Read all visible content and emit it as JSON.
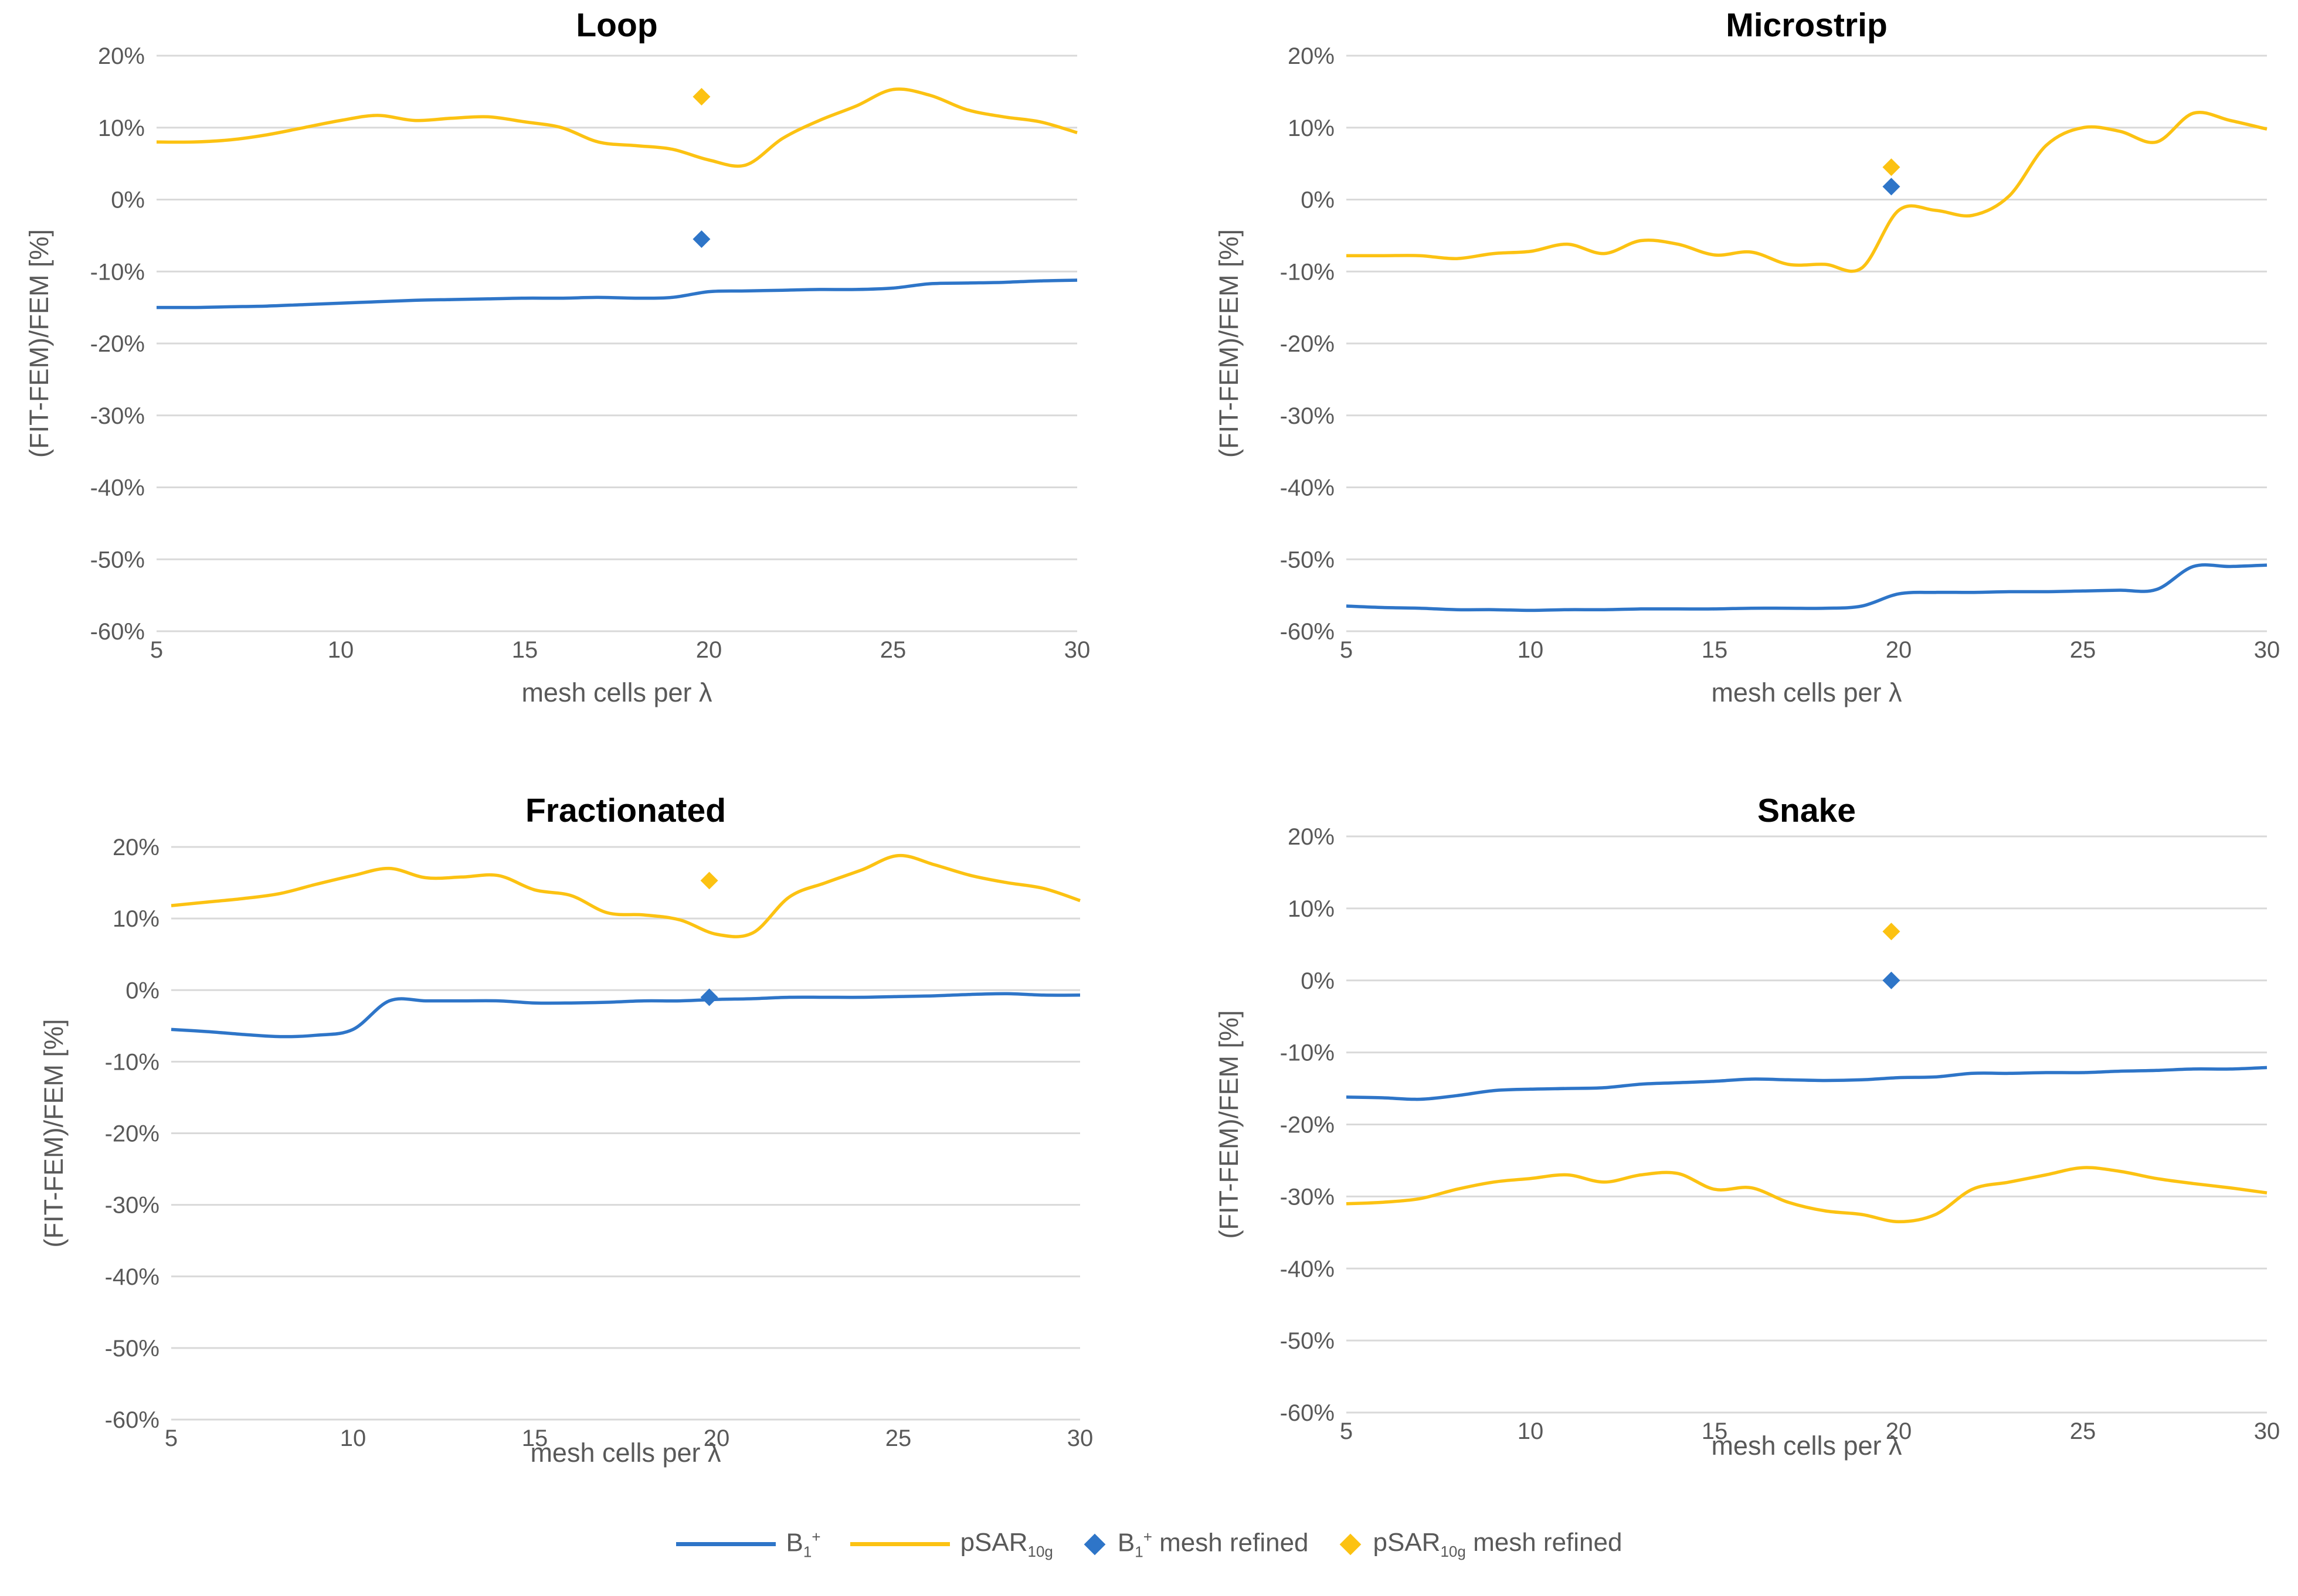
{
  "colors": {
    "b1": "#2e75c8",
    "psar": "#fcc212",
    "grid": "#d9d9d9",
    "text": "#595959"
  },
  "legend": {
    "b1_base": "B",
    "b1_sub": "1",
    "b1_sup": "+",
    "psar_base": "pSAR",
    "psar_sub": "10g",
    "refined_suffix": "mesh refined"
  },
  "chart_data": [
    {
      "type": "line",
      "title": "Loop",
      "xlabel": "mesh cells per λ",
      "ylabel": "(FIT-FEM)/FEM [%]",
      "xlim": [
        5,
        30
      ],
      "ylim": [
        -60,
        20
      ],
      "x_ticks": [
        5,
        10,
        15,
        20,
        25,
        30
      ],
      "y_ticks": [
        20,
        10,
        0,
        -10,
        -20,
        -30,
        -40,
        -50,
        -60
      ],
      "grid": true,
      "x": [
        5,
        6,
        7,
        8,
        9,
        10,
        11,
        12,
        13,
        14,
        15,
        16,
        17,
        18,
        19,
        20,
        21,
        22,
        23,
        24,
        25,
        26,
        27,
        28,
        29,
        30
      ],
      "series": [
        {
          "name": "B1+",
          "color": "#2e75c8",
          "values": [
            -15,
            -15,
            -14.9,
            -14.8,
            -14.6,
            -14.4,
            -14.2,
            -14.0,
            -13.9,
            -13.8,
            -13.7,
            -13.7,
            -13.6,
            -13.7,
            -13.6,
            -12.8,
            -12.7,
            -12.6,
            -12.5,
            -12.5,
            -12.3,
            -11.7,
            -11.6,
            -11.5,
            -11.3,
            -11.2
          ]
        },
        {
          "name": "pSAR10g",
          "color": "#fcc212",
          "values": [
            8,
            8,
            8.3,
            9,
            10,
            11,
            11.7,
            11,
            11.3,
            11.5,
            10.8,
            10,
            8,
            7.5,
            7,
            5.5,
            4.8,
            8.5,
            11,
            13,
            15.3,
            14.5,
            12.5,
            11.5,
            10.8,
            9.3
          ]
        }
      ],
      "markers": [
        {
          "name": "B1+ mesh refined",
          "color": "#2e75c8",
          "x": 19.8,
          "y": -5.5
        },
        {
          "name": "pSAR10g mesh refined",
          "color": "#fcc212",
          "x": 19.8,
          "y": 14.3
        }
      ]
    },
    {
      "type": "line",
      "title": "Microstrip",
      "xlabel": "mesh cells per λ",
      "ylabel": "(FIT-FEM)/FEM [%]",
      "xlim": [
        5,
        30
      ],
      "ylim": [
        -60,
        20
      ],
      "x_ticks": [
        5,
        10,
        15,
        20,
        25,
        30
      ],
      "y_ticks": [
        20,
        10,
        0,
        -10,
        -20,
        -30,
        -40,
        -50,
        -60
      ],
      "grid": true,
      "x": [
        5,
        6,
        7,
        8,
        9,
        10,
        11,
        12,
        13,
        14,
        15,
        16,
        17,
        18,
        19,
        20,
        21,
        22,
        23,
        24,
        25,
        26,
        27,
        28,
        29,
        30
      ],
      "series": [
        {
          "name": "B1+",
          "color": "#2e75c8",
          "values": [
            -56.5,
            -56.7,
            -56.8,
            -57,
            -57,
            -57.1,
            -57,
            -57,
            -56.9,
            -56.9,
            -56.9,
            -56.8,
            -56.8,
            -56.8,
            -56.5,
            -54.8,
            -54.6,
            -54.6,
            -54.5,
            -54.5,
            -54.4,
            -54.3,
            -54.2,
            -51,
            -51,
            -50.8
          ]
        },
        {
          "name": "pSAR10g",
          "color": "#fcc212",
          "values": [
            -7.8,
            -7.8,
            -7.8,
            -8.2,
            -7.5,
            -7.2,
            -6.2,
            -7.5,
            -5.7,
            -6.2,
            -7.7,
            -7.3,
            -9,
            -9,
            -9.5,
            -1.5,
            -1.5,
            -2.2,
            0.5,
            7.5,
            10,
            9.5,
            8,
            12,
            11,
            9.8
          ]
        }
      ],
      "markers": [
        {
          "name": "B1+ mesh refined",
          "color": "#2e75c8",
          "x": 19.8,
          "y": 1.8
        },
        {
          "name": "pSAR10g mesh refined",
          "color": "#fcc212",
          "x": 19.8,
          "y": 4.5
        }
      ]
    },
    {
      "type": "line",
      "title": "Fractionated",
      "xlabel": "mesh cells per λ",
      "ylabel": "(FIT-FEM)/FEM [%]",
      "xlim": [
        5,
        30
      ],
      "ylim": [
        -60,
        20
      ],
      "x_ticks": [
        5,
        10,
        15,
        20,
        25,
        30
      ],
      "y_ticks": [
        20,
        10,
        0,
        -10,
        -20,
        -30,
        -40,
        -50,
        -60
      ],
      "grid": true,
      "x": [
        5,
        6,
        7,
        8,
        9,
        10,
        11,
        12,
        13,
        14,
        15,
        16,
        17,
        18,
        19,
        20,
        21,
        22,
        23,
        24,
        25,
        26,
        27,
        28,
        29,
        30
      ],
      "series": [
        {
          "name": "B1+",
          "color": "#2e75c8",
          "values": [
            -5.5,
            -5.8,
            -6.2,
            -6.5,
            -6.3,
            -5.5,
            -1.5,
            -1.5,
            -1.5,
            -1.5,
            -1.8,
            -1.8,
            -1.7,
            -1.5,
            -1.5,
            -1.3,
            -1.2,
            -1,
            -1,
            -1,
            -0.9,
            -0.8,
            -0.6,
            -0.5,
            -0.7,
            -0.7
          ]
        },
        {
          "name": "pSAR10g",
          "color": "#fcc212",
          "values": [
            11.8,
            12.3,
            12.8,
            13.5,
            14.8,
            16,
            17,
            15.7,
            15.8,
            16,
            14,
            13.2,
            10.8,
            10.5,
            9.8,
            7.8,
            8,
            13,
            15,
            16.8,
            18.8,
            17.5,
            16,
            15,
            14.2,
            12.5
          ]
        }
      ],
      "markers": [
        {
          "name": "B1+ mesh refined",
          "color": "#2e75c8",
          "x": 19.8,
          "y": -1
        },
        {
          "name": "pSAR10g mesh refined",
          "color": "#fcc212",
          "x": 19.8,
          "y": 15.3
        }
      ]
    },
    {
      "type": "line",
      "title": "Snake",
      "xlabel": "mesh cells per λ",
      "ylabel": "(FIT-FEM)/FEM [%]",
      "xlim": [
        5,
        30
      ],
      "ylim": [
        -60,
        20
      ],
      "x_ticks": [
        5,
        10,
        15,
        20,
        25,
        30
      ],
      "y_ticks": [
        20,
        10,
        0,
        -10,
        -20,
        -30,
        -40,
        -50,
        -60
      ],
      "grid": true,
      "x": [
        5,
        6,
        7,
        8,
        9,
        10,
        11,
        12,
        13,
        14,
        15,
        16,
        17,
        18,
        19,
        20,
        21,
        22,
        23,
        24,
        25,
        26,
        27,
        28,
        29,
        30
      ],
      "series": [
        {
          "name": "B1+",
          "color": "#2e75c8",
          "values": [
            -16.2,
            -16.3,
            -16.5,
            -16,
            -15.3,
            -15.1,
            -15,
            -14.9,
            -14.4,
            -14.2,
            -14,
            -13.7,
            -13.8,
            -13.9,
            -13.8,
            -13.5,
            -13.4,
            -12.9,
            -12.9,
            -12.8,
            -12.8,
            -12.6,
            -12.5,
            -12.3,
            -12.3,
            -12.1
          ]
        },
        {
          "name": "pSAR10g",
          "color": "#fcc212",
          "values": [
            -31,
            -30.8,
            -30.3,
            -29,
            -28,
            -27.5,
            -27,
            -28,
            -27,
            -26.8,
            -29,
            -28.8,
            -30.8,
            -32,
            -32.5,
            -33.5,
            -32.5,
            -29,
            -28,
            -27,
            -26,
            -26.5,
            -27.5,
            -28.2,
            -28.8,
            -29.5
          ]
        }
      ],
      "markers": [
        {
          "name": "B1+ mesh refined",
          "color": "#2e75c8",
          "x": 19.8,
          "y": 0
        },
        {
          "name": "pSAR10g mesh refined",
          "color": "#fcc212",
          "x": 19.8,
          "y": 6.8
        }
      ]
    }
  ]
}
